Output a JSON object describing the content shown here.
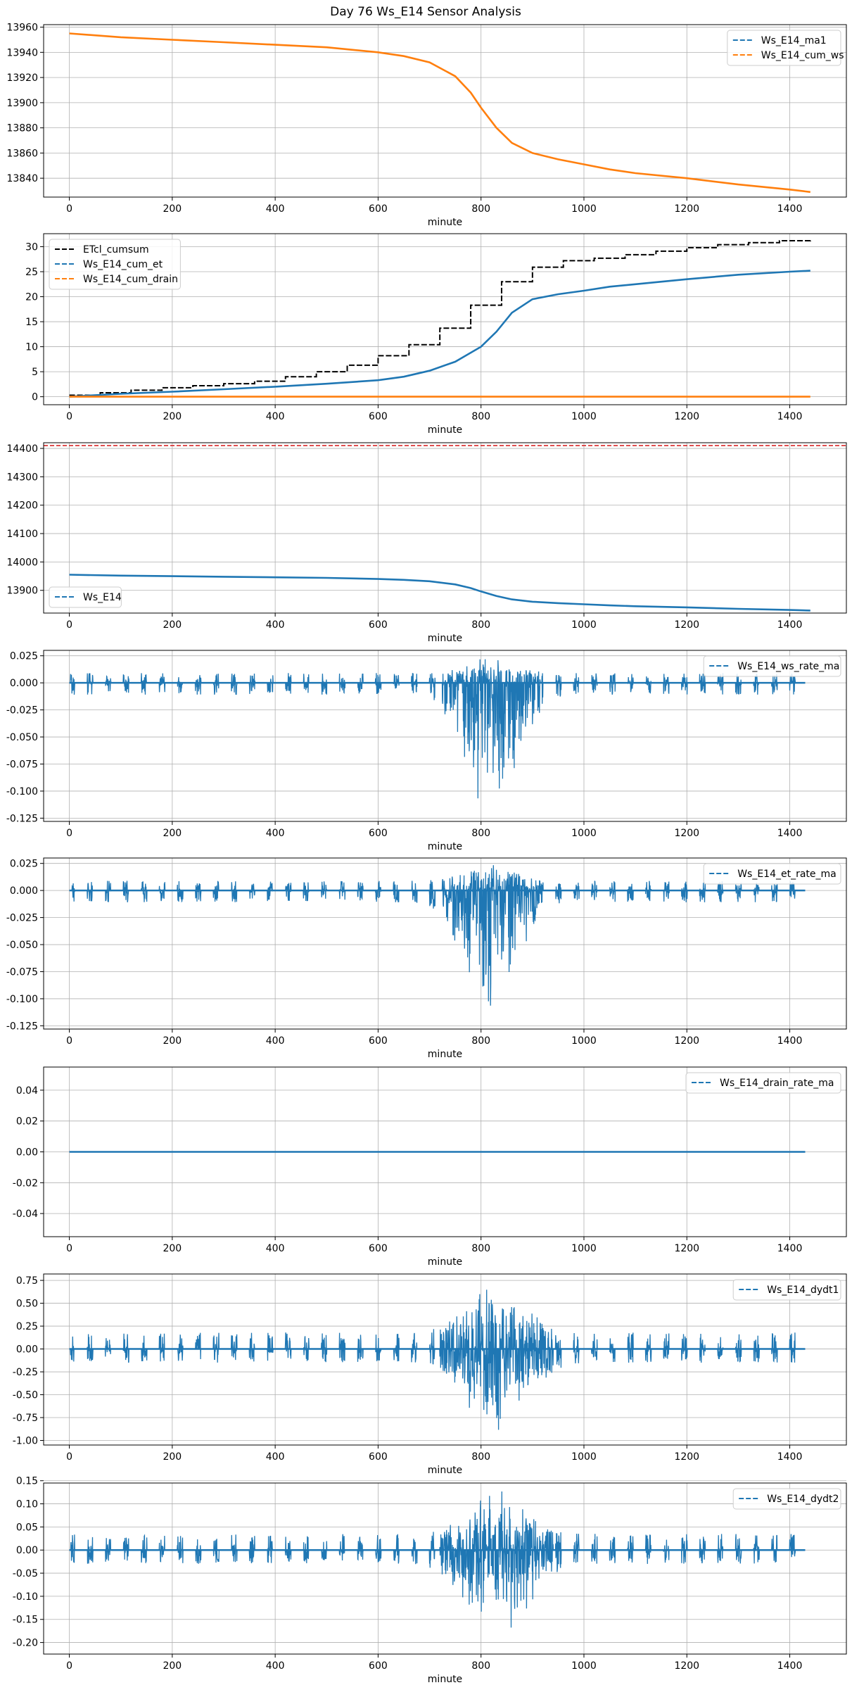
{
  "title": "Day 76 Ws_E14 Sensor Analysis",
  "colors": {
    "blue": "#1f77b4",
    "orange": "#ff7f0e",
    "black": "#000000",
    "red": "#d62728",
    "grid": "#b0b0b0"
  },
  "chart_data": [
    {
      "type": "line",
      "xlabel": "minute",
      "xlim": [
        -50,
        1510
      ],
      "ylim": [
        13825,
        13962
      ],
      "xticks": [
        0,
        200,
        400,
        600,
        800,
        1000,
        1200,
        1400
      ],
      "yticks": [
        13840,
        13860,
        13880,
        13900,
        13920,
        13940,
        13960
      ],
      "grid": true,
      "legend_position": "top-right",
      "series": [
        {
          "name": "Ws_E14_ma1",
          "color": "#1f77b4",
          "style": "dashed",
          "legend_only": true,
          "points": []
        },
        {
          "name": "Ws_E14_cum_ws",
          "color": "#ff7f0e",
          "style": "dashed",
          "points": [
            [
              0,
              13955
            ],
            [
              100,
              13952
            ],
            [
              200,
              13950
            ],
            [
              300,
              13948
            ],
            [
              400,
              13946
            ],
            [
              500,
              13944
            ],
            [
              600,
              13940
            ],
            [
              650,
              13937
            ],
            [
              700,
              13932
            ],
            [
              750,
              13921
            ],
            [
              780,
              13908
            ],
            [
              800,
              13896
            ],
            [
              830,
              13880
            ],
            [
              860,
              13868
            ],
            [
              900,
              13860
            ],
            [
              950,
              13855
            ],
            [
              1000,
              13851
            ],
            [
              1050,
              13847
            ],
            [
              1100,
              13844
            ],
            [
              1200,
              13840
            ],
            [
              1300,
              13835
            ],
            [
              1400,
              13831
            ],
            [
              1440,
              13829
            ]
          ]
        }
      ]
    },
    {
      "type": "line",
      "xlabel": "minute",
      "xlim": [
        -50,
        1510
      ],
      "ylim": [
        -1.6,
        32.6
      ],
      "xticks": [
        0,
        200,
        400,
        600,
        800,
        1000,
        1200,
        1400
      ],
      "yticks": [
        0,
        5,
        10,
        15,
        20,
        25,
        30
      ],
      "grid": true,
      "legend_position": "top-left",
      "series": [
        {
          "name": "ETcl_cumsum",
          "color": "#000000",
          "style": "dashed-step",
          "points": [
            [
              0,
              0.3
            ],
            [
              60,
              0.8
            ],
            [
              120,
              1.3
            ],
            [
              180,
              1.8
            ],
            [
              240,
              2.2
            ],
            [
              300,
              2.6
            ],
            [
              360,
              3.1
            ],
            [
              420,
              4.0
            ],
            [
              480,
              5.0
            ],
            [
              540,
              6.3
            ],
            [
              600,
              8.2
            ],
            [
              660,
              10.4
            ],
            [
              720,
              13.7
            ],
            [
              780,
              18.3
            ],
            [
              840,
              23.0
            ],
            [
              900,
              25.9
            ],
            [
              960,
              27.2
            ],
            [
              1020,
              27.7
            ],
            [
              1080,
              28.4
            ],
            [
              1140,
              29.1
            ],
            [
              1200,
              29.8
            ],
            [
              1260,
              30.4
            ],
            [
              1320,
              30.8
            ],
            [
              1380,
              31.2
            ],
            [
              1440,
              31.5
            ]
          ]
        },
        {
          "name": "Ws_E14_cum_et",
          "color": "#1f77b4",
          "style": "dashed",
          "points": [
            [
              0,
              0
            ],
            [
              100,
              0.6
            ],
            [
              200,
              1.0
            ],
            [
              300,
              1.5
            ],
            [
              400,
              2.0
            ],
            [
              500,
              2.6
            ],
            [
              600,
              3.3
            ],
            [
              650,
              4.0
            ],
            [
              700,
              5.2
            ],
            [
              750,
              7.0
            ],
            [
              800,
              10.0
            ],
            [
              830,
              13.0
            ],
            [
              860,
              16.8
            ],
            [
              900,
              19.5
            ],
            [
              950,
              20.5
            ],
            [
              1000,
              21.2
            ],
            [
              1050,
              22.0
            ],
            [
              1100,
              22.5
            ],
            [
              1200,
              23.5
            ],
            [
              1300,
              24.4
            ],
            [
              1400,
              25.0
            ],
            [
              1440,
              25.2
            ]
          ]
        },
        {
          "name": "Ws_E14_cum_drain",
          "color": "#ff7f0e",
          "style": "dashed",
          "points": [
            [
              0,
              0
            ],
            [
              1440,
              0
            ]
          ]
        }
      ]
    },
    {
      "type": "line",
      "xlabel": "minute",
      "xlim": [
        -50,
        1510
      ],
      "ylim": [
        13820,
        14420
      ],
      "xticks": [
        0,
        200,
        400,
        600,
        800,
        1000,
        1200,
        1400
      ],
      "yticks": [
        13900,
        14000,
        14100,
        14200,
        14300,
        14400
      ],
      "grid": true,
      "legend_position": "bottom-left",
      "hline": {
        "y": 14410,
        "color": "#d62728",
        "style": "dashed"
      },
      "series": [
        {
          "name": "Ws_E14",
          "color": "#1f77b4",
          "style": "dashed",
          "points": [
            [
              0,
              13955
            ],
            [
              100,
              13952
            ],
            [
              200,
              13950
            ],
            [
              300,
              13948
            ],
            [
              400,
              13946
            ],
            [
              500,
              13944
            ],
            [
              600,
              13940
            ],
            [
              650,
              13937
            ],
            [
              700,
              13932
            ],
            [
              750,
              13921
            ],
            [
              780,
              13908
            ],
            [
              800,
              13896
            ],
            [
              830,
              13880
            ],
            [
              860,
              13868
            ],
            [
              900,
              13860
            ],
            [
              950,
              13855
            ],
            [
              1000,
              13851
            ],
            [
              1050,
              13847
            ],
            [
              1100,
              13844
            ],
            [
              1200,
              13840
            ],
            [
              1300,
              13835
            ],
            [
              1400,
              13831
            ],
            [
              1440,
              13829
            ]
          ]
        }
      ]
    },
    {
      "type": "line",
      "xlabel": "minute",
      "xlim": [
        -50,
        1510
      ],
      "ylim": [
        -0.128,
        0.03
      ],
      "xticks": [
        0,
        200,
        400,
        600,
        800,
        1000,
        1200,
        1400
      ],
      "yticks": [
        -0.125,
        -0.1,
        -0.075,
        -0.05,
        -0.025,
        0.0,
        0.025
      ],
      "ytick_labels": [
        "-0.125",
        "-0.100",
        "-0.075",
        "-0.050",
        "-0.025",
        "0.000",
        "0.025"
      ],
      "grid": true,
      "legend_position": "top-right",
      "series": [
        {
          "name": "Ws_E14_ws_rate_ma",
          "color": "#1f77b4",
          "style": "dashed",
          "kind": "noise",
          "baseline": 0.0,
          "burst_low": -0.011,
          "burst_high": 0.009,
          "event_center": 820,
          "event_width": 70,
          "event_low": -0.123,
          "event_high": 0.025,
          "xmax": 1430
        }
      ]
    },
    {
      "type": "line",
      "xlabel": "minute",
      "xlim": [
        -50,
        1510
      ],
      "ylim": [
        -0.128,
        0.03
      ],
      "xticks": [
        0,
        200,
        400,
        600,
        800,
        1000,
        1200,
        1400
      ],
      "yticks": [
        -0.125,
        -0.1,
        -0.075,
        -0.05,
        -0.025,
        0.0,
        0.025
      ],
      "ytick_labels": [
        "-0.125",
        "-0.100",
        "-0.075",
        "-0.050",
        "-0.025",
        "0.000",
        "0.025"
      ],
      "grid": true,
      "legend_position": "top-right",
      "series": [
        {
          "name": "Ws_E14_et_rate_ma",
          "color": "#1f77b4",
          "style": "dashed",
          "kind": "noise",
          "baseline": 0.0,
          "burst_low": -0.011,
          "burst_high": 0.009,
          "event_center": 820,
          "event_width": 70,
          "event_low": -0.123,
          "event_high": 0.025,
          "xmax": 1430
        }
      ]
    },
    {
      "type": "line",
      "xlabel": "minute",
      "xlim": [
        -50,
        1510
      ],
      "ylim": [
        -0.055,
        0.055
      ],
      "xticks": [
        0,
        200,
        400,
        600,
        800,
        1000,
        1200,
        1400
      ],
      "yticks": [
        -0.04,
        -0.02,
        0.0,
        0.02,
        0.04
      ],
      "ytick_labels": [
        "-0.04",
        "-0.02",
        "0.00",
        "0.02",
        "0.04"
      ],
      "grid": true,
      "legend_position": "top-right",
      "series": [
        {
          "name": "Ws_E14_drain_rate_ma",
          "color": "#1f77b4",
          "style": "dashed",
          "points": [
            [
              0,
              0
            ],
            [
              1430,
              0
            ]
          ]
        }
      ]
    },
    {
      "type": "line",
      "xlabel": "minute",
      "xlim": [
        -50,
        1510
      ],
      "ylim": [
        -1.05,
        0.82
      ],
      "xticks": [
        0,
        200,
        400,
        600,
        800,
        1000,
        1200,
        1400
      ],
      "yticks": [
        -1.0,
        -0.75,
        -0.5,
        -0.25,
        0.0,
        0.25,
        0.5,
        0.75
      ],
      "ytick_labels": [
        "-1.00",
        "-0.75",
        "-0.50",
        "-0.25",
        "0.00",
        "0.25",
        "0.50",
        "0.75"
      ],
      "grid": true,
      "legend_position": "top-right",
      "series": [
        {
          "name": "Ws_E14_dydt1",
          "color": "#1f77b4",
          "style": "dashed",
          "kind": "noise",
          "baseline": 0.0,
          "burst_low": -0.15,
          "burst_high": 0.18,
          "event_center": 830,
          "event_width": 80,
          "event_low": -1.0,
          "event_high": 0.78,
          "xmax": 1430
        }
      ]
    },
    {
      "type": "line",
      "xlabel": "minute",
      "xlim": [
        -50,
        1510
      ],
      "ylim": [
        -0.225,
        0.145
      ],
      "xticks": [
        0,
        200,
        400,
        600,
        800,
        1000,
        1200,
        1400
      ],
      "yticks": [
        -0.2,
        -0.15,
        -0.1,
        -0.05,
        0.0,
        0.05,
        0.1,
        0.15
      ],
      "ytick_labels": [
        "-0.20",
        "-0.15",
        "-0.10",
        "-0.05",
        "0.00",
        "0.05",
        "0.10",
        "0.15"
      ],
      "grid": true,
      "legend_position": "top-right",
      "series": [
        {
          "name": "Ws_E14_dydt2",
          "color": "#1f77b4",
          "style": "dashed",
          "kind": "noise",
          "baseline": 0.0,
          "burst_low": -0.03,
          "burst_high": 0.035,
          "event_center": 830,
          "event_width": 80,
          "event_low": -0.215,
          "event_high": 0.135,
          "xmax": 1430
        }
      ]
    }
  ]
}
